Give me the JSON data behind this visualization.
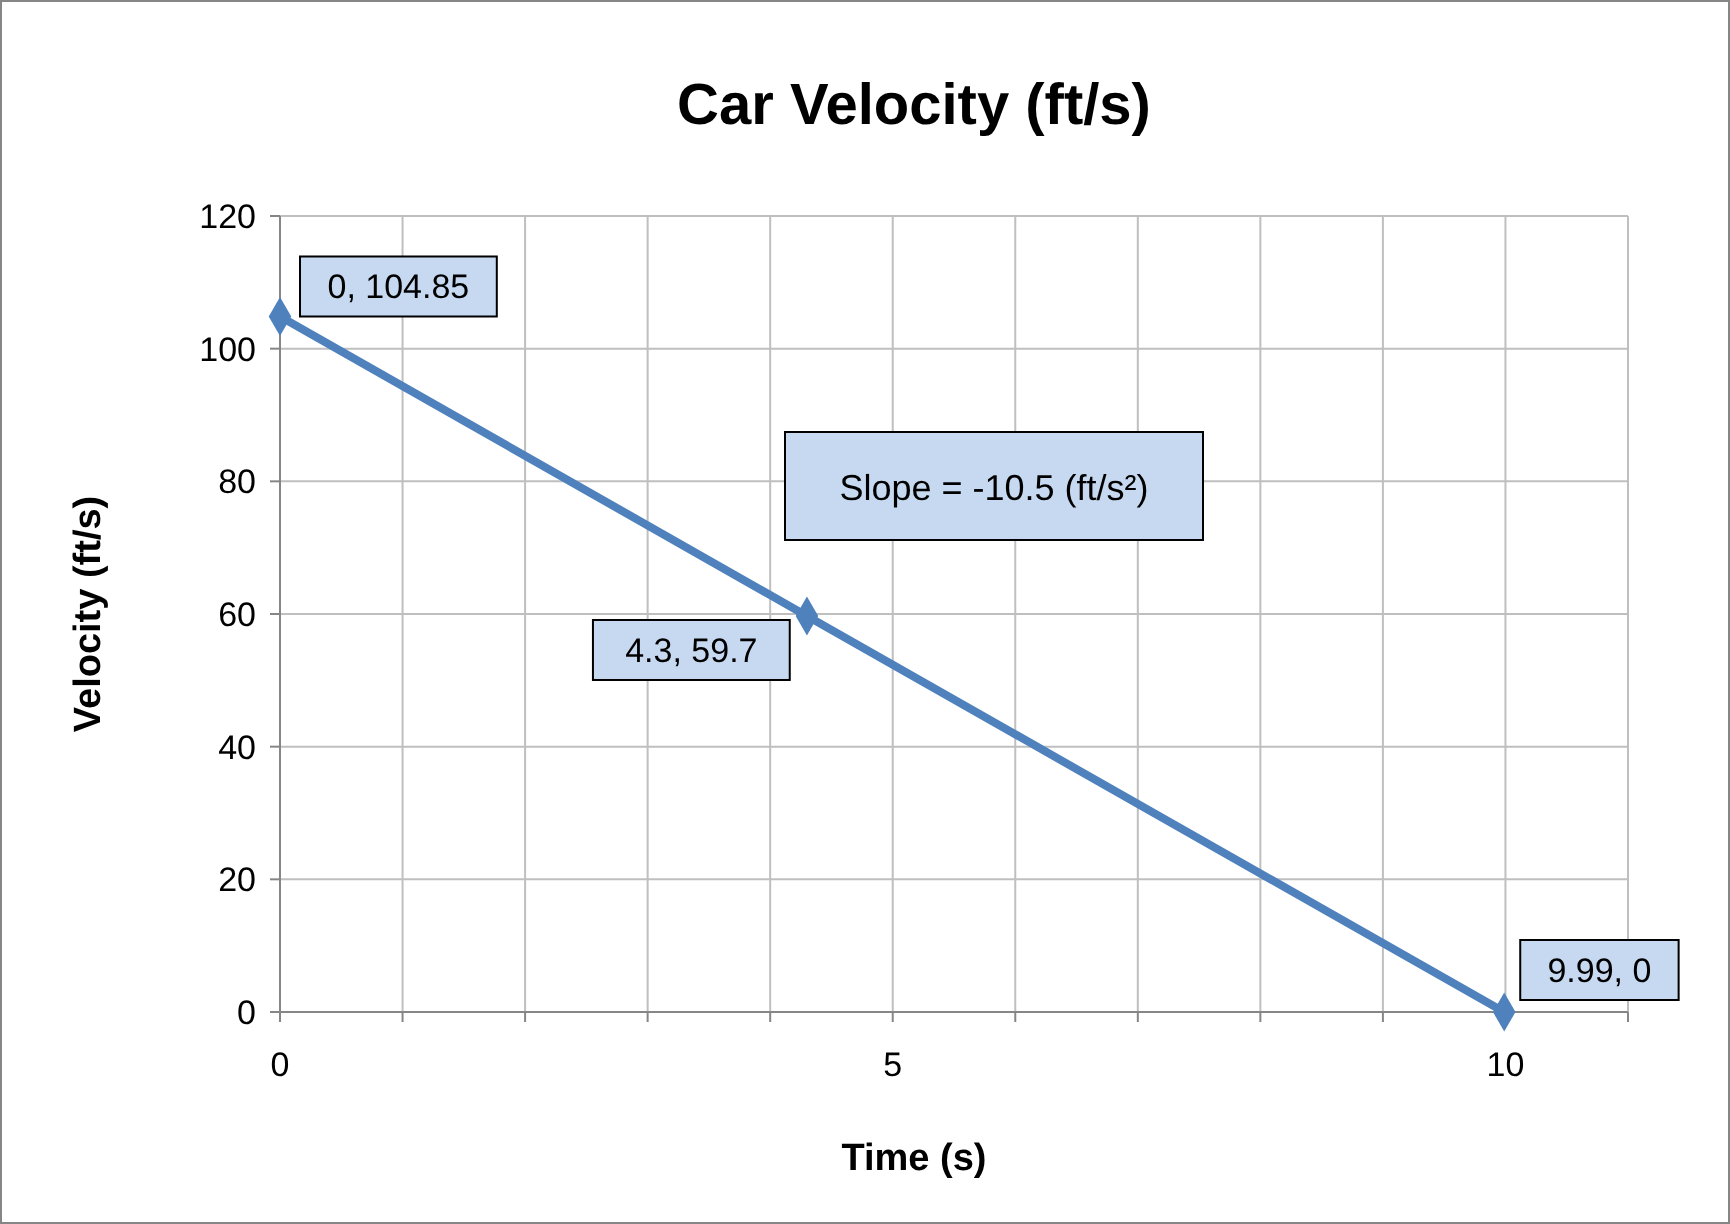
{
  "chart_data": {
    "type": "line",
    "title": "Car Velocity (ft/s)",
    "xlabel": "Time (s)",
    "ylabel": "Velocity (ft/s)",
    "x": [
      0,
      4.3,
      9.99
    ],
    "series": [
      {
        "color": "#4f81bd",
        "values": [
          104.85,
          59.7,
          0
        ],
        "value_labels": [
          "0, 104.85",
          "4.3, 59.7",
          "9.99, 0"
        ]
      }
    ],
    "xlim": [
      0,
      11
    ],
    "xticks": [
      0,
      {
        "value": 1,
        "label": null
      },
      {
        "value": 2,
        "label": null
      },
      {
        "value": 3,
        "label": null
      },
      {
        "value": 4,
        "label": null
      },
      5,
      {
        "value": 6,
        "label": null
      },
      {
        "value": 7,
        "label": null
      },
      {
        "value": 8,
        "label": null
      },
      {
        "value": 9,
        "label": null
      },
      10,
      {
        "value": 11,
        "label": null
      }
    ],
    "ylim": [
      0,
      120
    ],
    "yticks": [
      0,
      20,
      40,
      60,
      80,
      100,
      120
    ],
    "grid": true,
    "marker": "diamond",
    "line_style": "solid",
    "annotations": [
      "Slope = -10.5 (ft/s²)"
    ]
  }
}
